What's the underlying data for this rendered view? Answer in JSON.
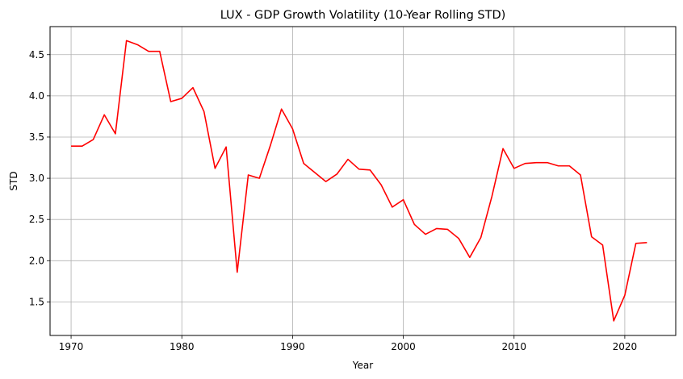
{
  "chart_data": {
    "type": "line",
    "title": "LUX - GDP Growth Volatility (10-Year Rolling STD)",
    "xlabel": "Year",
    "ylabel": "STD",
    "xlim": [
      1968.1,
      2024.6
    ],
    "ylim": [
      1.093,
      4.84
    ],
    "x_ticks": [
      1970,
      1980,
      1990,
      2000,
      2010,
      2020
    ],
    "y_ticks": [
      1.5,
      2.0,
      2.5,
      3.0,
      3.5,
      4.0,
      4.5
    ],
    "y_tick_labels": [
      "1.5",
      "2.0",
      "2.5",
      "3.0",
      "3.5",
      "4.0",
      "4.5"
    ],
    "grid": true,
    "line_color": "#ff0000",
    "series": [
      {
        "x": [
          1970,
          1971,
          1972,
          1973,
          1974,
          1975,
          1976,
          1977,
          1978,
          1979,
          1980,
          1981,
          1982,
          1983,
          1984,
          1985,
          1986,
          1987,
          1988,
          1989,
          1990,
          1991,
          1992,
          1993,
          1994,
          1995,
          1996,
          1997,
          1998,
          1999,
          2000,
          2001,
          2002,
          2003,
          2004,
          2005,
          2006,
          2007,
          2008,
          2009,
          2010,
          2011,
          2012,
          2013,
          2014,
          2015,
          2016,
          2017,
          2018,
          2019,
          2020,
          2021,
          2022
        ],
        "values": [
          3.39,
          3.39,
          3.47,
          3.77,
          3.54,
          4.67,
          4.62,
          4.54,
          4.54,
          3.93,
          3.97,
          4.1,
          3.81,
          3.12,
          3.38,
          1.86,
          3.04,
          3.0,
          3.4,
          3.84,
          3.6,
          3.18,
          3.07,
          2.96,
          3.05,
          3.23,
          3.11,
          3.1,
          2.92,
          2.65,
          2.74,
          2.44,
          2.32,
          2.39,
          2.38,
          2.27,
          2.04,
          2.28,
          2.78,
          3.36,
          3.12,
          3.18,
          3.19,
          3.19,
          3.15,
          3.15,
          3.04,
          2.29,
          2.19,
          1.27,
          1.58,
          2.21,
          2.22
        ]
      }
    ]
  }
}
